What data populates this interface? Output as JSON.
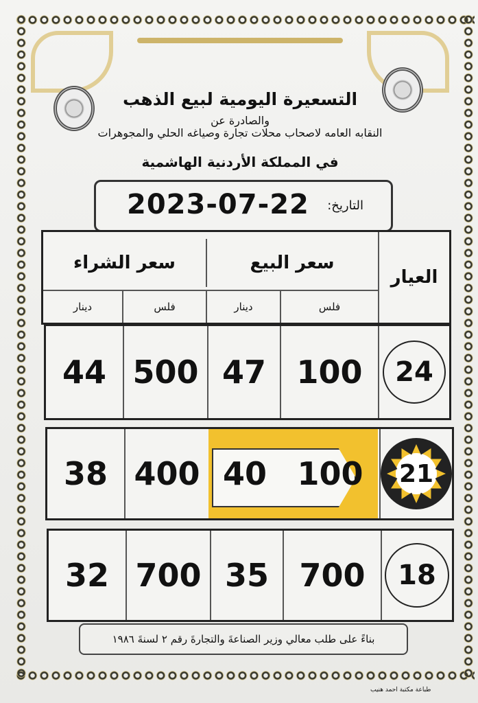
{
  "header": {
    "title": "التسعيرة اليومية لبيع الذهب",
    "issued_by": "والصادرة عن",
    "organization": "النقابه العامه لاصحاب محلات تجارة وصياغه الحلي والمجوهرات",
    "country": "في المملكة الأردنية الهاشمية"
  },
  "date": {
    "label": "التاريخ:",
    "value": "2023-07-22"
  },
  "table": {
    "karat_header": "العيار",
    "sell_header": "سعر البيع",
    "buy_header": "سعر الشراء",
    "fils": "فلس",
    "dinar": "دينار",
    "highlight_color": "#f2c12e",
    "rows": [
      {
        "karat": "24",
        "sell_fils": "100",
        "sell_dinar": "47",
        "buy_fils": "500",
        "buy_dinar": "44"
      },
      {
        "karat": "21",
        "sell_fils": "100",
        "sell_dinar": "40",
        "buy_fils": "400",
        "buy_dinar": "38"
      },
      {
        "karat": "18",
        "sell_fils": "700",
        "sell_dinar": "35",
        "buy_fils": "700",
        "buy_dinar": "32"
      }
    ]
  },
  "footer": {
    "note": "بناءً على طلب معالي وزير الصناعةَ والتجارةَ رقم ٢ لسنةَ ١٩٨٦",
    "printer": "طباعة مكتبة احمد هنيب"
  }
}
